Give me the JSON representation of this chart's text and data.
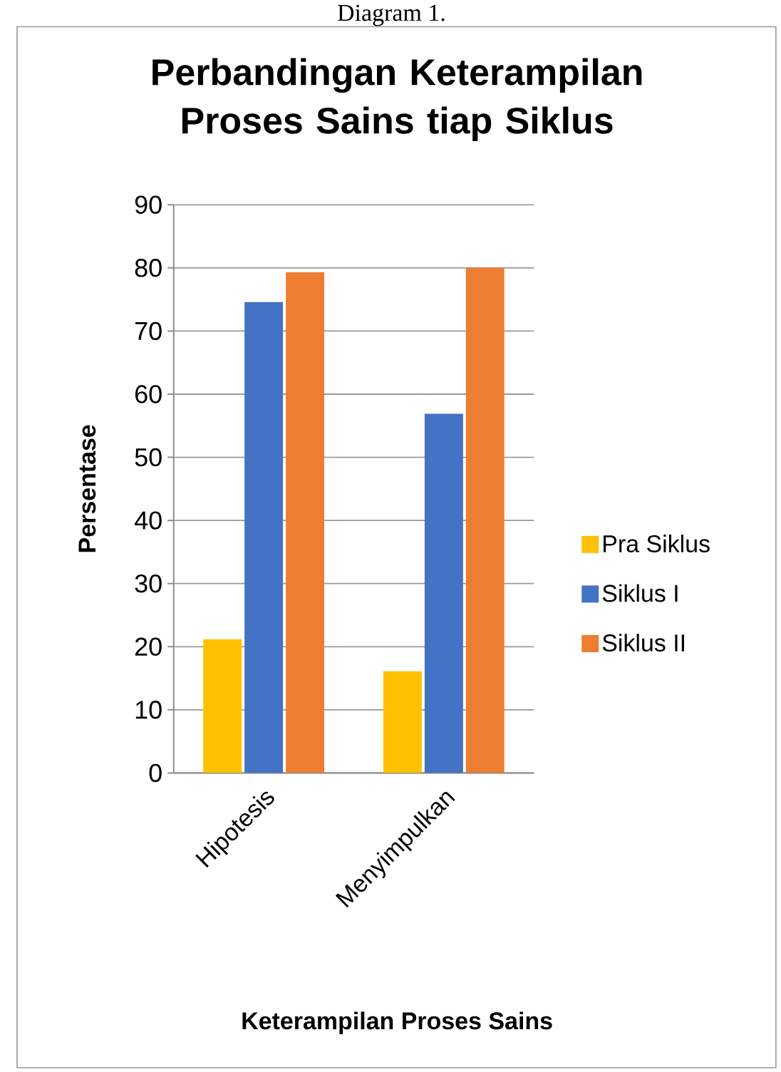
{
  "chart_data": {
    "type": "bar",
    "title": "Perbandingan Keterampilan Proses Sains tiap Siklus",
    "xlabel": "Keterampilan Proses Sains",
    "ylabel": "Persentase",
    "annotations": [
      "Diagram 1."
    ],
    "categories": [
      "Hipotesis",
      "Menyimpulkan"
    ],
    "series": [
      {
        "name": "Pra Siklus",
        "color": "#ffc000",
        "values": [
          21.2,
          16.1
        ]
      },
      {
        "name": "Siklus I",
        "color": "#4472c4",
        "values": [
          74.6,
          56.9
        ]
      },
      {
        "name": "Siklus II",
        "color": "#ed7d31",
        "values": [
          79.3,
          80.0
        ]
      }
    ],
    "ylim": [
      0,
      90
    ],
    "yticks": [
      0,
      10,
      20,
      30,
      40,
      50,
      60,
      70,
      80,
      90
    ],
    "grid": "y",
    "legend": "right"
  }
}
